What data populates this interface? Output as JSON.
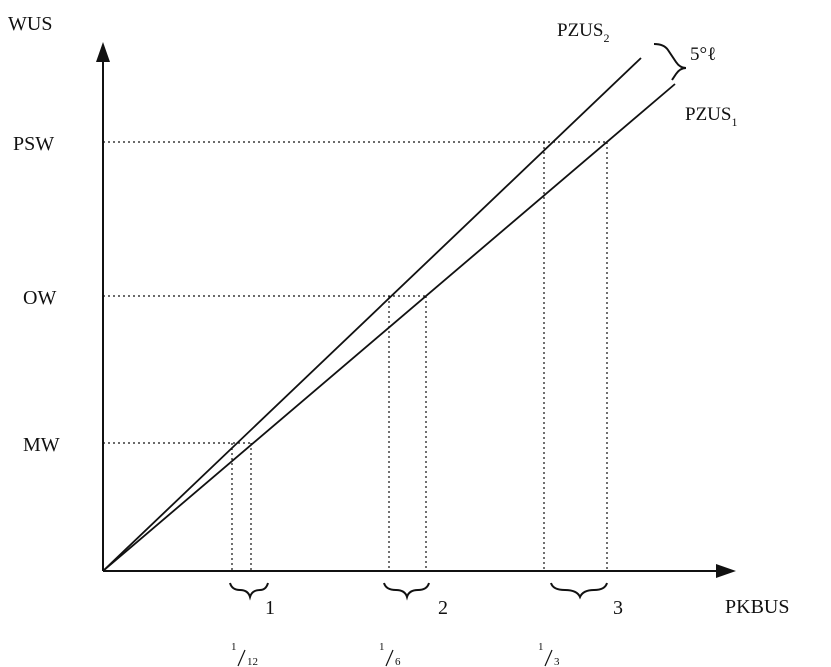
{
  "axes": {
    "y_label": "WUS",
    "x_label": "PKBUS"
  },
  "levels": [
    {
      "key": "psw",
      "label": "PSW"
    },
    {
      "key": "ow",
      "label": "OW"
    },
    {
      "key": "mw",
      "label": "MW"
    }
  ],
  "lines": {
    "pzus2": {
      "base": "PZUS",
      "sub": "2"
    },
    "pzus1": {
      "base": "PZUS",
      "sub": "1"
    },
    "gap_label": "5°ℓ"
  },
  "intervals": [
    {
      "number": "1",
      "frac_num": "1",
      "frac_den": "12"
    },
    {
      "number": "2",
      "frac_num": "1",
      "frac_den": "6"
    },
    {
      "number": "3",
      "frac_num": "1",
      "frac_den": "3"
    }
  ],
  "colors": {
    "ink": "#111111",
    "background": "#ffffff"
  }
}
